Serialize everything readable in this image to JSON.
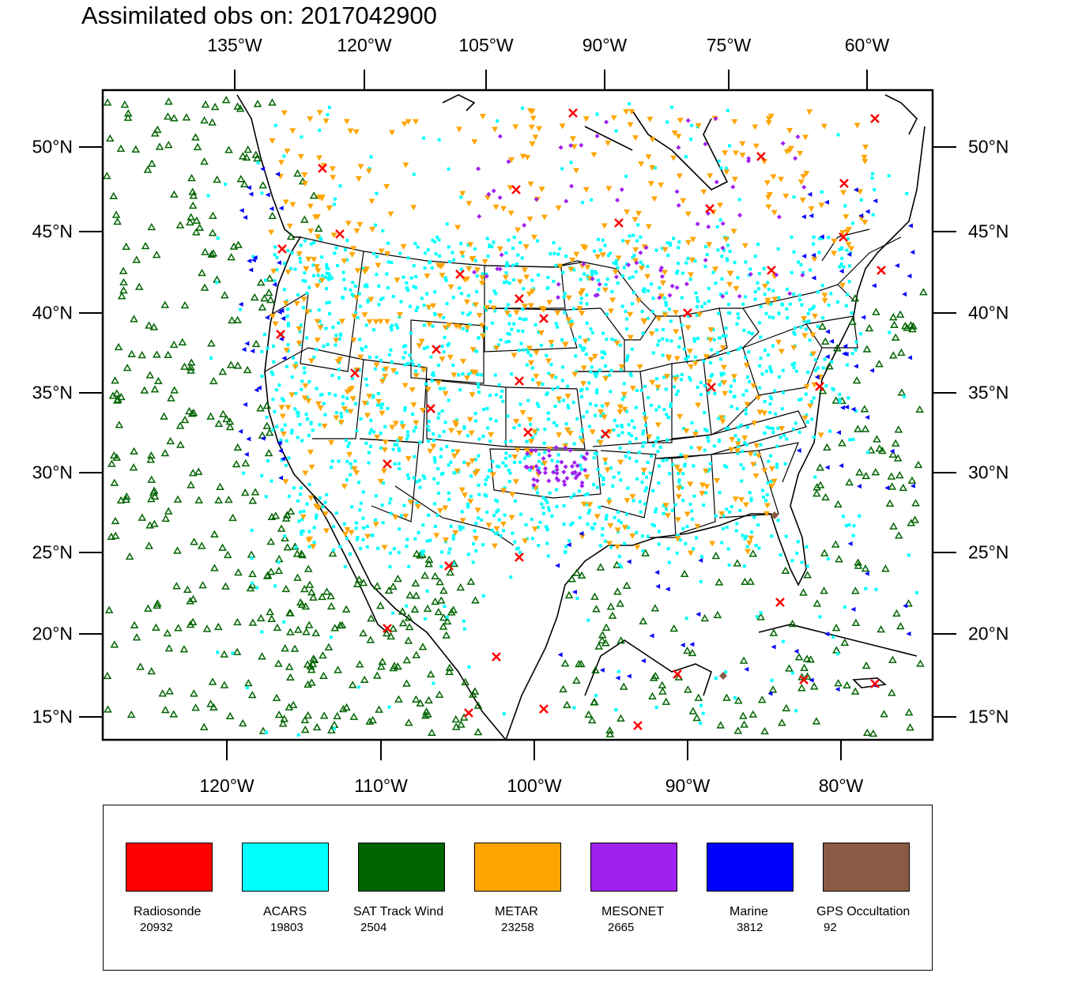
{
  "title": "Assimilated obs on: 2017042900",
  "axes": {
    "top_lon": [
      "135°W",
      "120°W",
      "105°W",
      "90°W",
      "75°W",
      "60°W"
    ],
    "bottom_lon": [
      "120°W",
      "110°W",
      "100°W",
      "90°W",
      "80°W"
    ],
    "left_lat": [
      "50°N",
      "45°N",
      "40°N",
      "35°N",
      "30°N",
      "25°N",
      "20°N",
      "15°N"
    ],
    "right_lat": [
      "50°N",
      "45°N",
      "40°N",
      "35°N",
      "30°N",
      "25°N",
      "20°N",
      "15°N"
    ]
  },
  "legend": [
    {
      "name": "Radiosonde",
      "count": "20932",
      "color": "#ff0000"
    },
    {
      "name": "ACARS",
      "count": "19803",
      "color": "#00ffff"
    },
    {
      "name": "SAT Track Wind",
      "count": "2504",
      "color": "#006400"
    },
    {
      "name": "METAR",
      "count": "23258",
      "color": "#ffa500"
    },
    {
      "name": "MESONET",
      "count": "2665",
      "color": "#a020f0"
    },
    {
      "name": "Marine",
      "count": "3812",
      "color": "#0000ff"
    },
    {
      "name": "GPS Occultation",
      "count": "92",
      "color": "#8b5a44"
    }
  ],
  "map": {
    "lat_range": [
      14,
      54
    ],
    "lon_range": [
      -128,
      -74
    ]
  }
}
